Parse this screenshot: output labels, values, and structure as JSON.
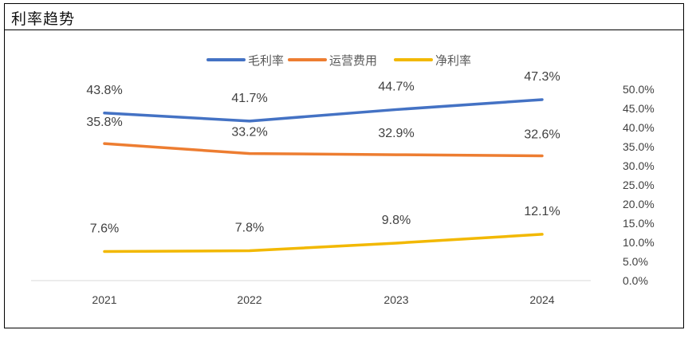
{
  "header": {
    "title": "利率趋势"
  },
  "chart_data": {
    "type": "line",
    "title": "",
    "xlabel": "",
    "ylabel": "",
    "categories": [
      "2021",
      "2022",
      "2023",
      "2024"
    ],
    "series": [
      {
        "name": "毛利率",
        "values": [
          43.8,
          41.7,
          44.7,
          47.3
        ],
        "labels": [
          "43.8%",
          "41.7%",
          "44.7%",
          "47.3%"
        ],
        "color": "#4472C4"
      },
      {
        "name": "运营费用",
        "values": [
          35.8,
          33.2,
          32.9,
          32.6
        ],
        "labels": [
          "35.8%",
          "33.2%",
          "32.9%",
          "32.6%"
        ],
        "color": "#ED7D31"
      },
      {
        "name": "净利率",
        "values": [
          7.6,
          7.8,
          9.8,
          12.1
        ],
        "labels": [
          "7.6%",
          "7.8%",
          "9.8%",
          "12.1%"
        ],
        "color": "#F2B800"
      }
    ],
    "ylim": [
      0,
      50
    ],
    "yticks": [
      "0.0%",
      "5.0%",
      "10.0%",
      "15.0%",
      "20.0%",
      "25.0%",
      "30.0%",
      "35.0%",
      "40.0%",
      "45.0%",
      "50.0%"
    ],
    "y_axis_side": "right",
    "legend_position": "top",
    "grid": false
  }
}
